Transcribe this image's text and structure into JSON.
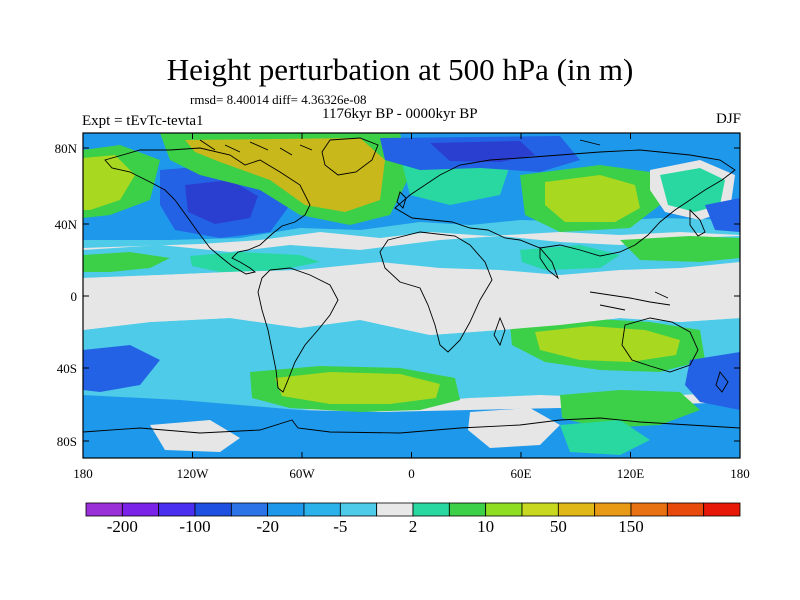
{
  "figure": {
    "title": "Height perturbation at 500 hPa (in m)",
    "stats": "rmsd= 8.40014 diff= 4.36326e-08",
    "period": "1176kyr BP - 0000kyr BP",
    "experiment": "Expt = tEvTc-tevta1",
    "season": "DJF"
  },
  "axes": {
    "lat_ticks": [
      "80N",
      "40N",
      "0",
      "40S",
      "80S"
    ],
    "lon_ticks": [
      "180",
      "120W",
      "60W",
      "0",
      "60E",
      "120E",
      "180"
    ]
  },
  "colorbar": {
    "labels": [
      "-200",
      "-100",
      "-20",
      "-5",
      "2",
      "10",
      "50",
      "150"
    ],
    "colors": [
      "#9a30d8",
      "#7a22e8",
      "#4a2ff0",
      "#1d4fe0",
      "#2d73e8",
      "#1e98ea",
      "#2cb2ea",
      "#4ecbe8",
      "#e8e8e8",
      "#28d8a0",
      "#3ccf48",
      "#90de22",
      "#c8d820",
      "#e0b818",
      "#e89a14",
      "#e87212",
      "#e84a0c",
      "#e81808"
    ]
  },
  "palette": {
    "neutral": "#e6e6e6",
    "lightblue": "#4ecbe8",
    "blue": "#1e98ea",
    "darkblue": "#2362e4",
    "indigo": "#2a3ecf",
    "green": "#3ccf48",
    "aqua": "#28d8a0",
    "yellowgreen": "#a8d820",
    "olive": "#c8b81c",
    "coast": "#000000"
  }
}
